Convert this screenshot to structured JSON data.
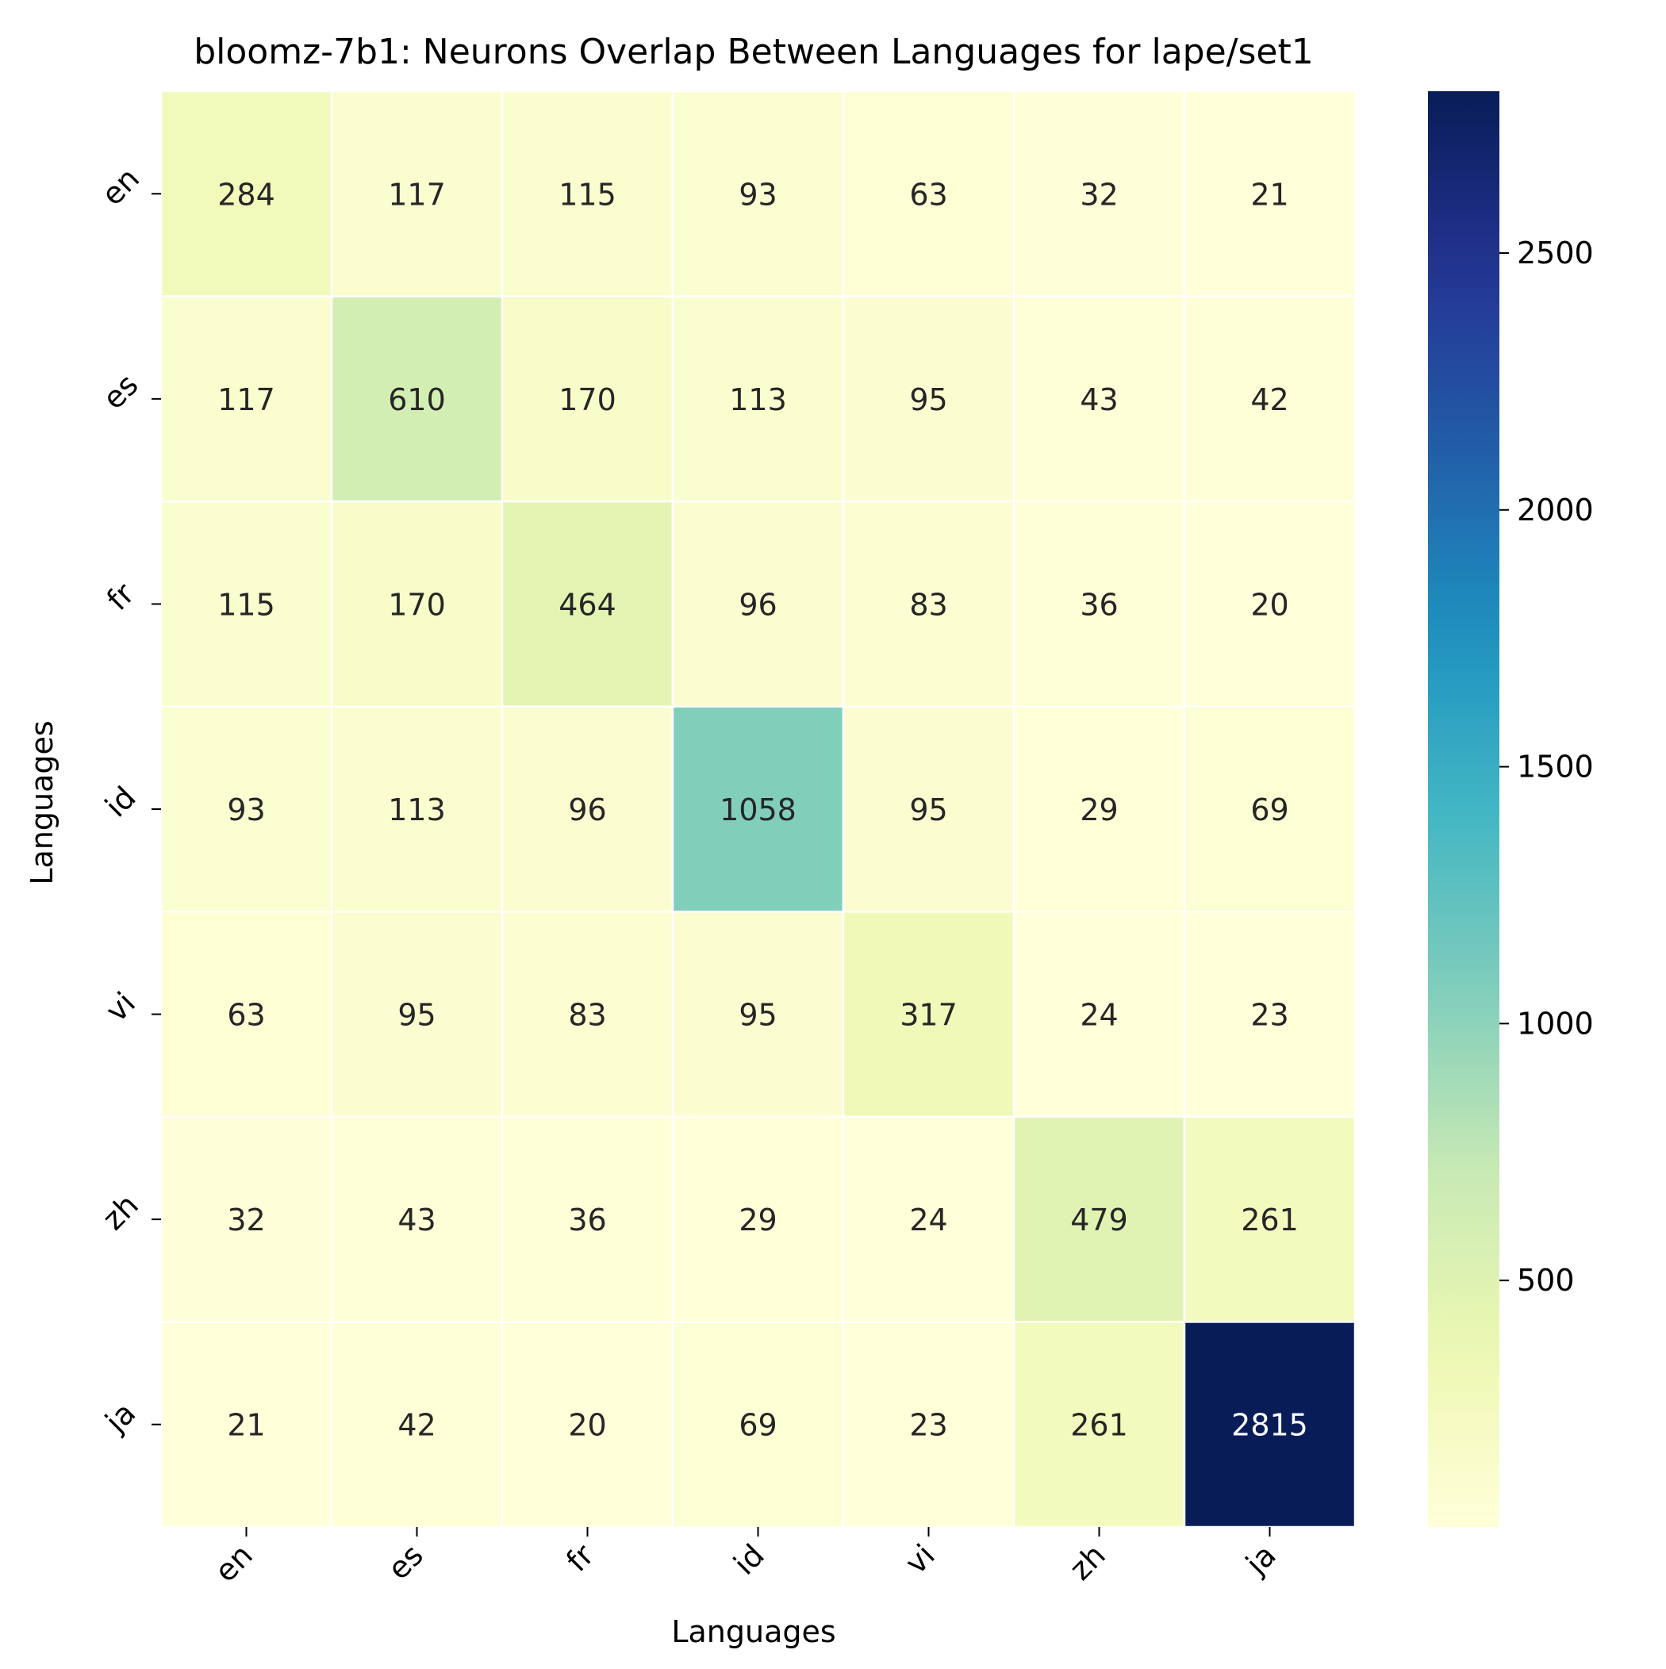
{
  "chart_data": {
    "type": "heatmap",
    "title": "bloomz-7b1: Neurons Overlap Between Languages for lape/set1",
    "xlabel": "Languages",
    "ylabel": "Languages",
    "x_categories": [
      "en",
      "es",
      "fr",
      "id",
      "vi",
      "zh",
      "ja"
    ],
    "y_categories": [
      "en",
      "es",
      "fr",
      "id",
      "vi",
      "zh",
      "ja"
    ],
    "values": [
      [
        284,
        117,
        115,
        93,
        63,
        32,
        21
      ],
      [
        117,
        610,
        170,
        113,
        95,
        43,
        42
      ],
      [
        115,
        170,
        464,
        96,
        83,
        36,
        20
      ],
      [
        93,
        113,
        96,
        1058,
        95,
        29,
        69
      ],
      [
        63,
        95,
        83,
        95,
        317,
        24,
        23
      ],
      [
        32,
        43,
        36,
        29,
        24,
        479,
        261
      ],
      [
        21,
        42,
        20,
        69,
        23,
        261,
        2815
      ]
    ],
    "colormap": "YlGnBu",
    "colorbar": {
      "vmin": 20,
      "vmax": 2815,
      "ticks": [
        500,
        1000,
        1500,
        2000,
        2500
      ]
    },
    "annotations": true,
    "grid": false,
    "legend": "colorbar-right"
  }
}
